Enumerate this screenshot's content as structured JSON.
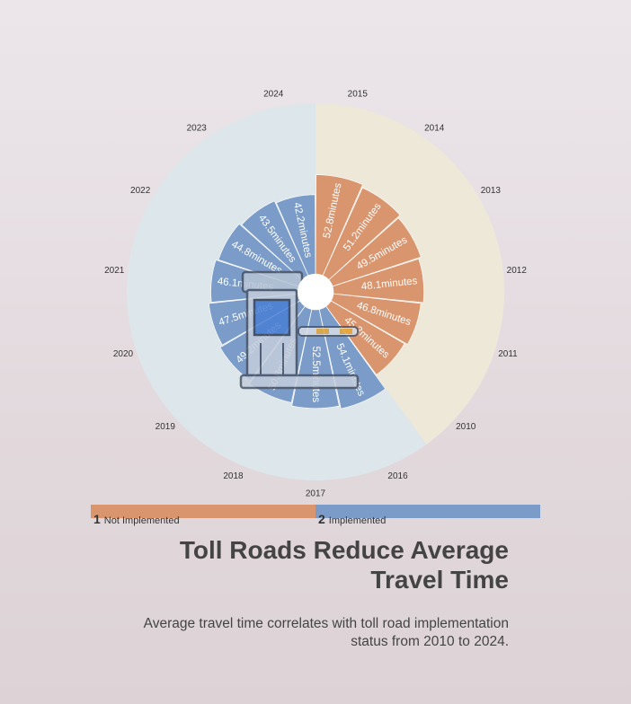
{
  "chart_data": {
    "type": "polar-bar",
    "title": "Toll Roads Reduce Average Travel Time",
    "subtitle": "Average travel time correlates with toll road implementation status from 2010 to 2024.",
    "unit": "minutes",
    "categories": [
      "2015",
      "2014",
      "2013",
      "2012",
      "2011",
      "2010",
      "2016",
      "2017",
      "2018",
      "2019",
      "2020",
      "2021",
      "2022",
      "2023",
      "2024"
    ],
    "values": [
      52.8,
      51.2,
      49.5,
      48.1,
      46.8,
      45.2,
      54.1,
      52.5,
      50.8,
      49.2,
      47.5,
      46.1,
      44.8,
      43.5,
      42.2
    ],
    "group": [
      1,
      1,
      1,
      1,
      1,
      1,
      2,
      2,
      2,
      2,
      2,
      2,
      2,
      2,
      2
    ],
    "value_labels": [
      "52.8minutes",
      "51.2minutes",
      "49.5minutes",
      "48.1minutes",
      "46.8minutes",
      "45.2minutes",
      "54.1minutes",
      "52.5minutes",
      "50.8minutes",
      "49.2minutes",
      "47.5minutes",
      "46.1minutes",
      "44.8minutes",
      "43.5minutes",
      "42.2minutes"
    ],
    "legend": [
      {
        "number": "1",
        "label": "Not Implemented",
        "color": "#d9956e"
      },
      {
        "number": "2",
        "label": "Implemented",
        "color": "#7b9cc8"
      }
    ],
    "background_band_colors": {
      "not_implemented": "#eee8d9",
      "implemented": "#dde6ea"
    }
  }
}
